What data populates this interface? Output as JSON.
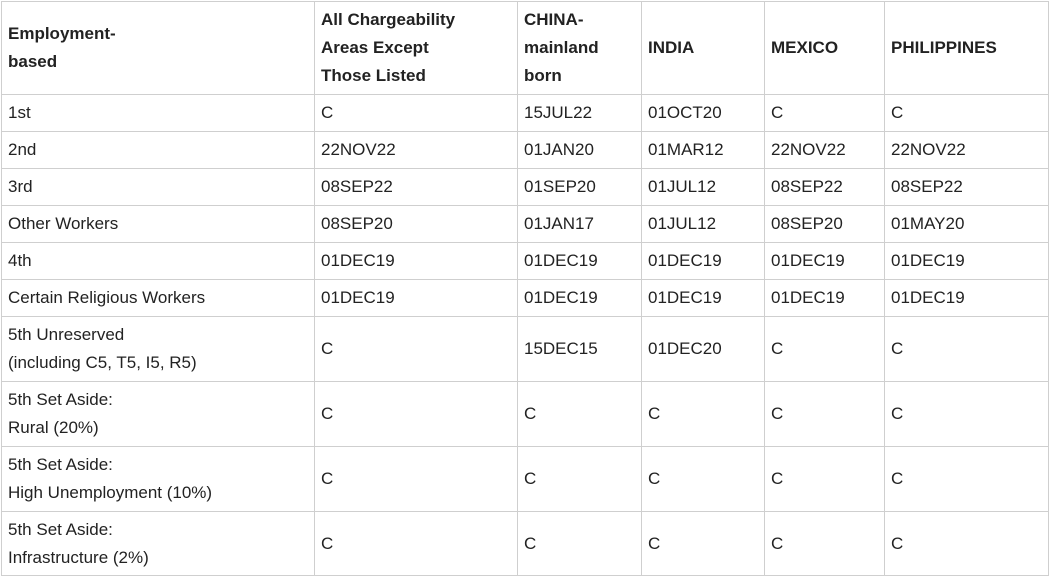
{
  "table": {
    "headers": [
      "Employment-\nbased",
      "All Chargeability\nAreas Except\nThose Listed",
      "CHINA-\nmainland\nborn",
      "INDIA",
      "MEXICO",
      "PHILIPPINES"
    ],
    "rows": [
      [
        "1st",
        "C",
        "15JUL22",
        "01OCT20",
        "C",
        "C"
      ],
      [
        "2nd",
        "22NOV22",
        "01JAN20",
        "01MAR12",
        "22NOV22",
        "22NOV22"
      ],
      [
        "3rd",
        "08SEP22",
        "01SEP20",
        "01JUL12",
        "08SEP22",
        "08SEP22"
      ],
      [
        "Other Workers",
        "08SEP20",
        "01JAN17",
        "01JUL12",
        "08SEP20",
        "01MAY20"
      ],
      [
        "4th",
        "01DEC19",
        "01DEC19",
        "01DEC19",
        "01DEC19",
        "01DEC19"
      ],
      [
        "Certain Religious Workers",
        "01DEC19",
        "01DEC19",
        "01DEC19",
        "01DEC19",
        "01DEC19"
      ],
      [
        "5th Unreserved\n(including C5, T5, I5, R5)",
        "C",
        "15DEC15",
        "01DEC20",
        "C",
        "C"
      ],
      [
        "5th Set Aside:\nRural (20%)",
        "C",
        "C",
        "C",
        "C",
        "C"
      ],
      [
        "5th Set Aside:\nHigh Unemployment (10%)",
        "C",
        "C",
        "C",
        "C",
        "C"
      ],
      [
        "5th Set Aside:\nInfrastructure (2%)",
        "C",
        "C",
        "C",
        "C",
        "C"
      ]
    ]
  }
}
